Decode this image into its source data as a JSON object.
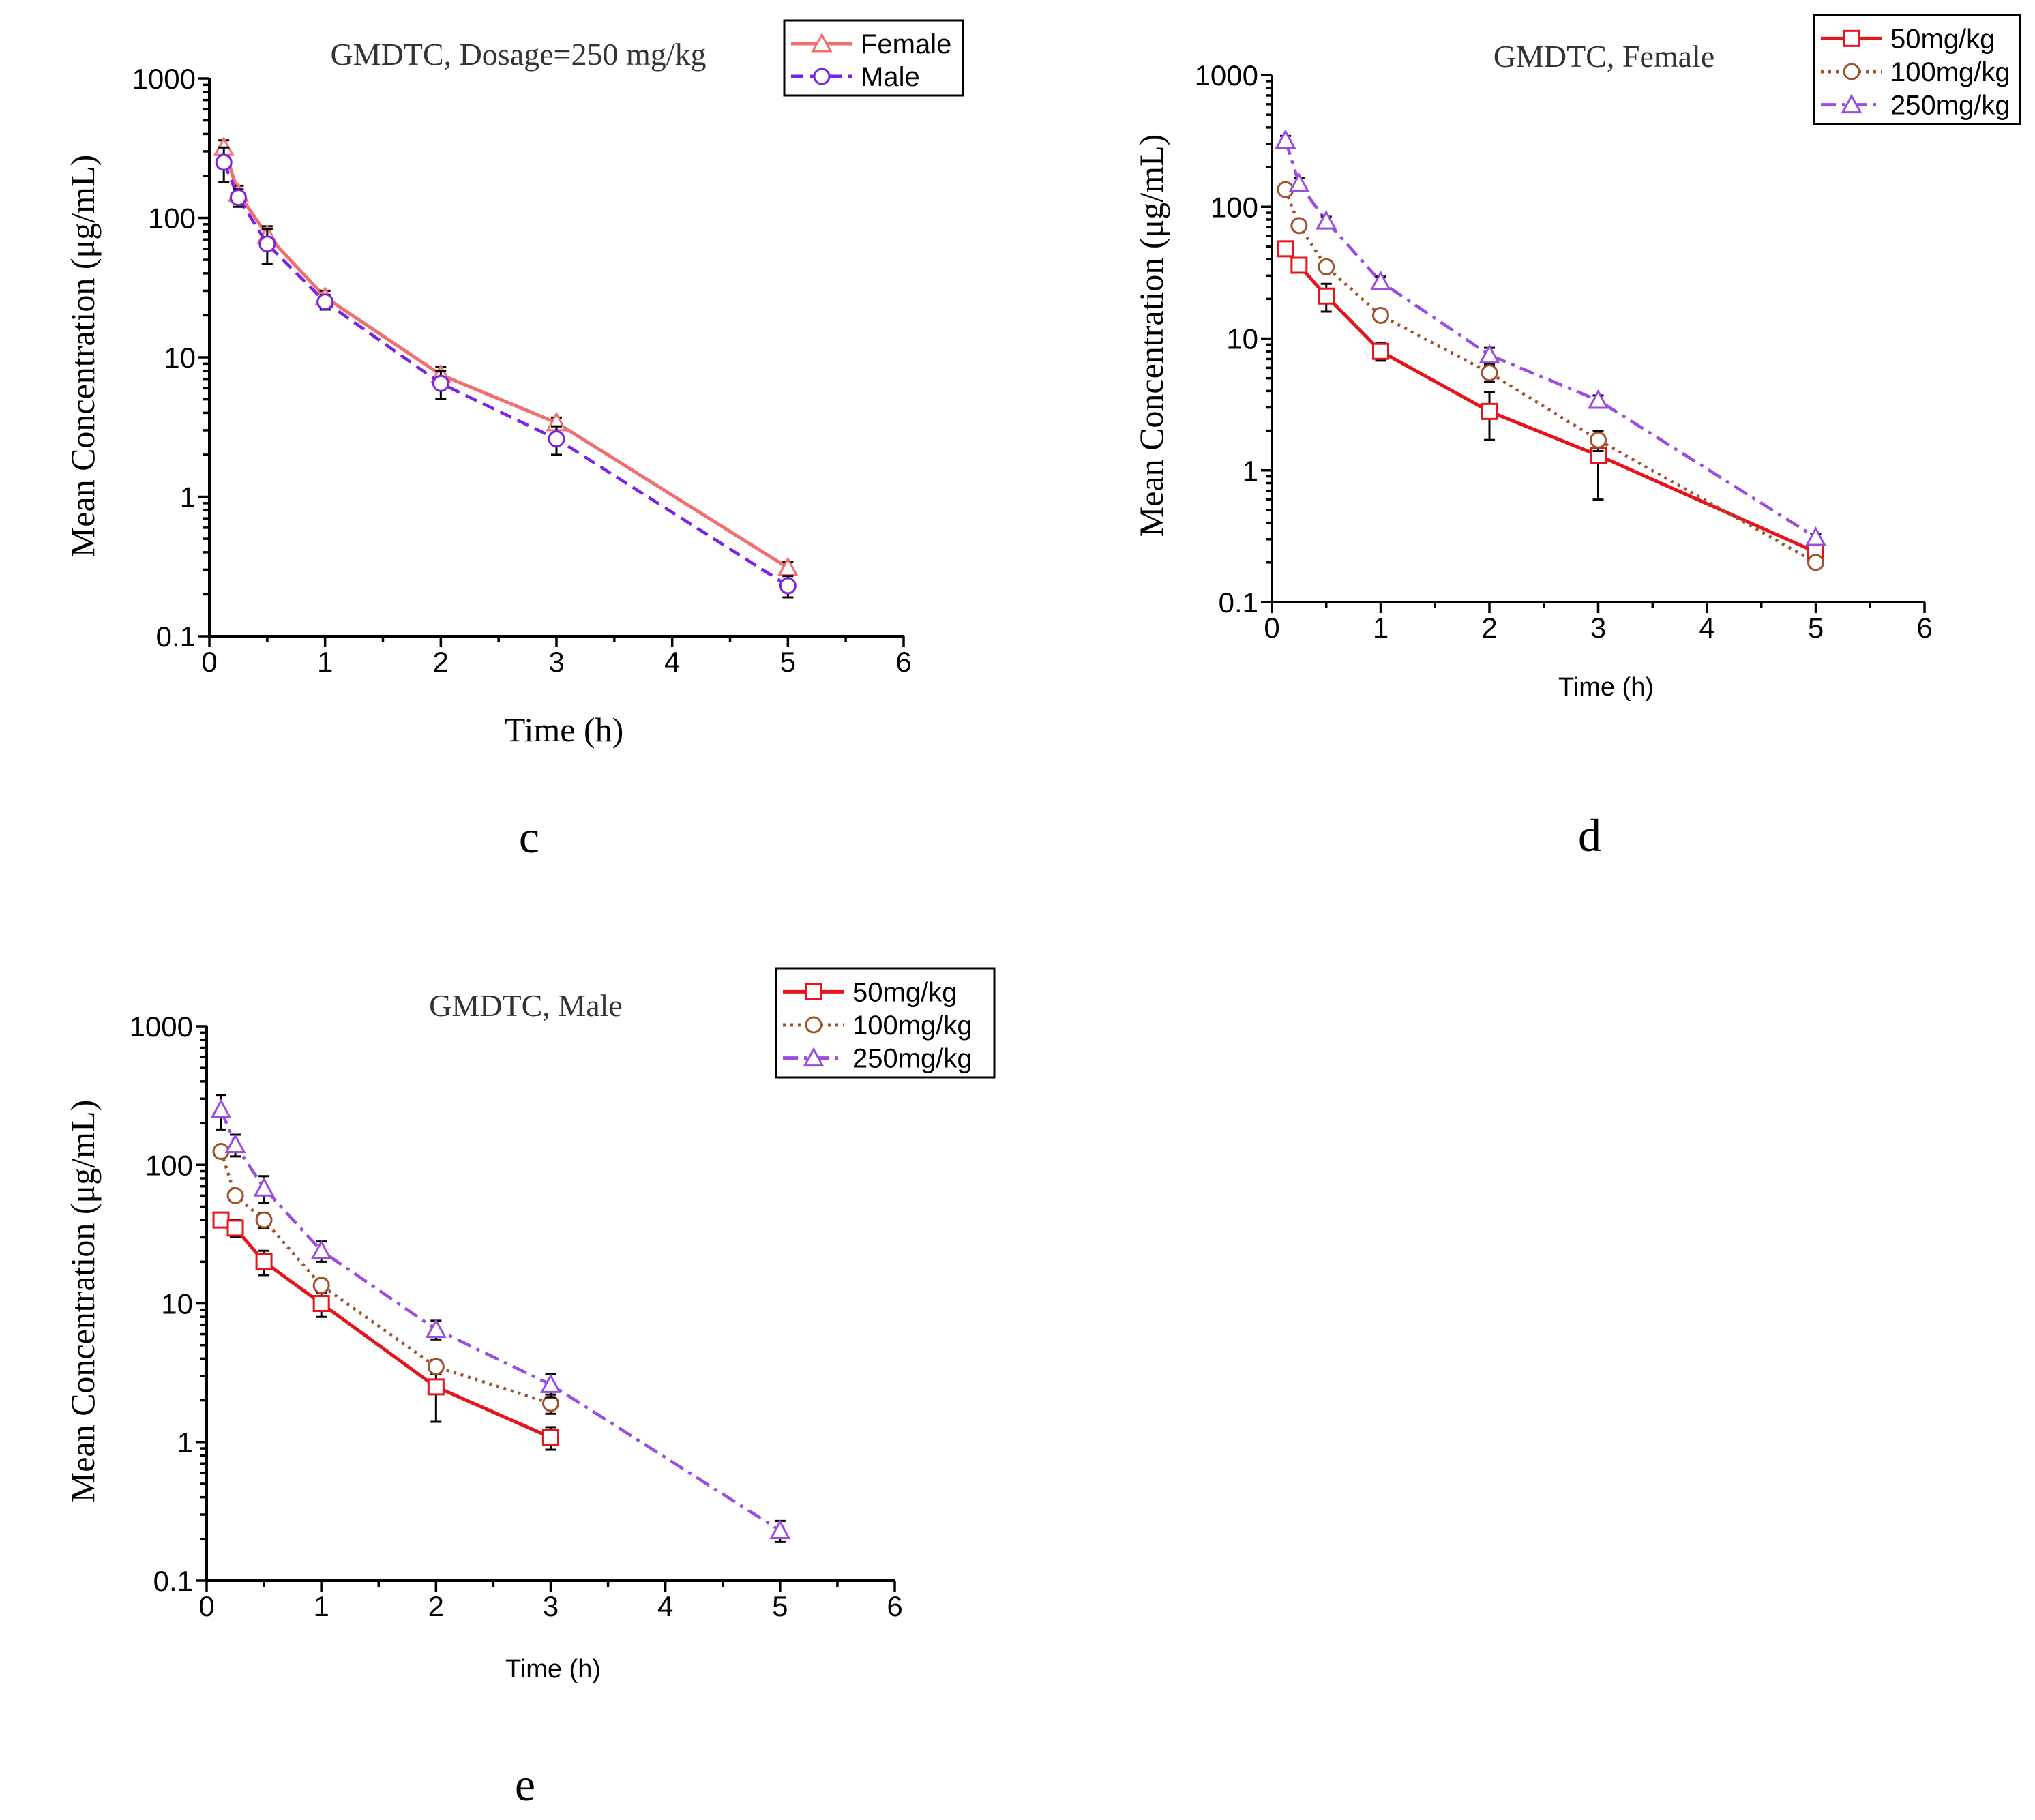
{
  "chart_data": [
    {
      "panel": "c",
      "type": "line",
      "title": "GMDTC, Dosage=250 mg/kg",
      "xlabel": "Time (h)",
      "ylabel": "Mean Concentration (μg/mL)",
      "xlim": [
        0,
        6
      ],
      "ylim": [
        0.1,
        1000
      ],
      "yscale": "log",
      "xticks": [
        "0",
        "1",
        "2",
        "3",
        "4",
        "5",
        "6"
      ],
      "yticks": [
        "0.1",
        "1",
        "10",
        "100",
        "1000"
      ],
      "legend_position": "top-right",
      "series": [
        {
          "name": "Female",
          "color": "#f07070",
          "marker": "triangle",
          "dash": "solid",
          "x": [
            0.125,
            0.25,
            0.5,
            1,
            2,
            3,
            5
          ],
          "y": [
            320,
            150,
            75,
            27,
            7.5,
            3.4,
            0.31
          ],
          "err": [
            40,
            20,
            12,
            3,
            1,
            0.3,
            0.03
          ]
        },
        {
          "name": "Male",
          "color": "#7a22e8",
          "marker": "circle",
          "dash": "dash",
          "x": [
            0.125,
            0.25,
            0.5,
            1,
            2,
            3,
            5
          ],
          "y": [
            250,
            140,
            65,
            25,
            6.5,
            2.6,
            0.23
          ],
          "err": [
            70,
            20,
            18,
            3,
            1.5,
            0.6,
            0.04
          ]
        }
      ]
    },
    {
      "panel": "d",
      "type": "line",
      "title": "GMDTC,  Female",
      "xlabel": "Time (h)",
      "ylabel": "Mean Concentration (μg/mL)",
      "xlim": [
        0,
        6
      ],
      "ylim": [
        0.1,
        1000
      ],
      "yscale": "log",
      "xticks": [
        "0",
        "1",
        "2",
        "3",
        "4",
        "5",
        "6"
      ],
      "yticks": [
        "0.1",
        "1",
        "10",
        "100",
        "1000"
      ],
      "legend_position": "top-right",
      "series": [
        {
          "name": "50mg/kg",
          "color": "#e8141b",
          "marker": "square",
          "dash": "solid",
          "x": [
            0.125,
            0.25,
            0.5,
            1,
            2,
            3,
            5
          ],
          "y": [
            48,
            36,
            21,
            8,
            2.8,
            1.3,
            0.24
          ],
          "err": [
            3,
            3,
            5,
            1.2,
            1.1,
            0.7,
            0.02
          ]
        },
        {
          "name": "100mg/kg",
          "color": "#a0522d",
          "marker": "circle",
          "dash": "dot",
          "x": [
            0.125,
            0.25,
            0.5,
            1,
            2,
            3,
            5
          ],
          "y": [
            135,
            72,
            35,
            15,
            5.5,
            1.7,
            0.2
          ],
          "err": [
            10,
            5,
            3,
            1.2,
            0.8,
            0.3,
            0.02
          ]
        },
        {
          "name": "250mg/kg",
          "color": "#9b4de0",
          "marker": "triangle",
          "dash": "dashdot",
          "x": [
            0.125,
            0.25,
            0.5,
            1,
            2,
            3,
            5
          ],
          "y": [
            320,
            150,
            78,
            27,
            7.5,
            3.4,
            0.31
          ],
          "err": [
            25,
            15,
            6,
            2.5,
            1,
            0.3,
            0.02
          ]
        }
      ]
    },
    {
      "panel": "e",
      "type": "line",
      "title": "GMDTC,  Male",
      "xlabel": "Time (h)",
      "ylabel": "Mean Concentration (μg/mL)",
      "xlim": [
        0,
        6
      ],
      "ylim": [
        0.1,
        1000
      ],
      "yscale": "log",
      "xticks": [
        "0",
        "1",
        "2",
        "3",
        "4",
        "5",
        "6"
      ],
      "yticks": [
        "0.1",
        "1",
        "10",
        "100",
        "1000"
      ],
      "legend_position": "top-right",
      "series": [
        {
          "name": "50mg/kg",
          "color": "#e8141b",
          "marker": "square",
          "dash": "solid",
          "x": [
            0.125,
            0.25,
            0.5,
            1,
            2,
            3
          ],
          "y": [
            40,
            35,
            20,
            10,
            2.5,
            1.08
          ],
          "err": [
            3,
            5,
            4,
            2,
            1.1,
            0.2
          ]
        },
        {
          "name": "100mg/kg",
          "color": "#a0522d",
          "marker": "circle",
          "dash": "dot",
          "x": [
            0.125,
            0.25,
            0.5,
            1,
            2,
            3
          ],
          "y": [
            125,
            60,
            40,
            13.5,
            3.5,
            1.9
          ],
          "err": [
            8,
            5,
            5,
            1.5,
            0.4,
            0.3
          ]
        },
        {
          "name": "250mg/kg",
          "color": "#9b4de0",
          "marker": "triangle",
          "dash": "dashdot",
          "x": [
            0.125,
            0.25,
            0.5,
            1,
            2,
            3,
            5
          ],
          "y": [
            250,
            140,
            68,
            24,
            6.5,
            2.6,
            0.23
          ],
          "err": [
            70,
            25,
            15,
            4,
            1,
            0.5,
            0.04
          ]
        }
      ]
    }
  ]
}
